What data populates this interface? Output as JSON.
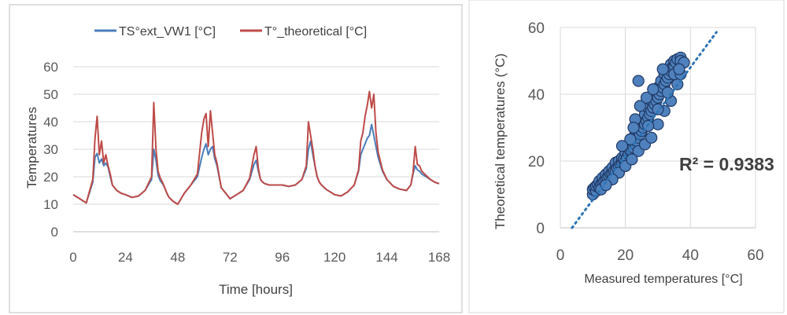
{
  "chart_data": [
    {
      "type": "line",
      "title": "",
      "xlabel": "Time [hours]",
      "ylabel": "Temperatures",
      "xlim": [
        0,
        168
      ],
      "ylim": [
        0,
        60
      ],
      "xticks": [
        "0",
        "24",
        "48",
        "72",
        "96",
        "120",
        "144",
        "168"
      ],
      "yticks": [
        "0",
        "10",
        "20",
        "30",
        "40",
        "50",
        "60"
      ],
      "grid": "horizontal",
      "legend": "top",
      "x": [
        0,
        3,
        6,
        9,
        10,
        11,
        12,
        13,
        14,
        15,
        16,
        17,
        18,
        20,
        22,
        24,
        27,
        30,
        33,
        36,
        37,
        38,
        39,
        40,
        41,
        42,
        43,
        44,
        46,
        48,
        51,
        54,
        57,
        59,
        60,
        61,
        62,
        63,
        64,
        65,
        66,
        67,
        68,
        70,
        72,
        75,
        78,
        81,
        83,
        84,
        85,
        86,
        87,
        88,
        90,
        93,
        96,
        99,
        102,
        105,
        107,
        108,
        109,
        110,
        111,
        112,
        113,
        114,
        116,
        120,
        123,
        126,
        129,
        131,
        132,
        133,
        134,
        135,
        136,
        137,
        138,
        139,
        140,
        142,
        144,
        147,
        150,
        153,
        155,
        156,
        157,
        158,
        159,
        160,
        162,
        164,
        166,
        168
      ],
      "series": [
        {
          "name": "TS°ext_VW1 [°C]",
          "color": "#4a7ebb",
          "values": [
            13.5,
            12.0,
            10.5,
            18.0,
            27.0,
            28.5,
            25.0,
            26.5,
            24.0,
            25.0,
            23.5,
            20.0,
            17.0,
            15.0,
            14.0,
            13.5,
            12.5,
            13.0,
            15.0,
            19.0,
            30.0,
            26.0,
            20.5,
            18.5,
            17.5,
            16.0,
            14.0,
            12.5,
            11.0,
            10.0,
            14.0,
            17.0,
            20.0,
            27.0,
            30.0,
            32.0,
            28.0,
            30.0,
            31.0,
            26.5,
            24.0,
            20.0,
            16.0,
            14.0,
            12.0,
            13.5,
            15.0,
            19.0,
            24.5,
            26.0,
            22.0,
            19.0,
            18.0,
            17.5,
            17.0,
            17.0,
            17.0,
            16.5,
            17.0,
            19.0,
            23.0,
            30.0,
            33.0,
            28.0,
            24.0,
            20.0,
            18.0,
            17.0,
            15.5,
            13.5,
            13.0,
            14.5,
            17.0,
            22.0,
            28.0,
            30.0,
            32.0,
            34.0,
            35.0,
            39.0,
            35.0,
            31.0,
            27.0,
            22.0,
            19.0,
            16.5,
            15.5,
            15.0,
            17.0,
            21.0,
            24.0,
            22.5,
            22.0,
            21.0,
            20.0,
            19.0,
            18.0,
            17.5
          ]
        },
        {
          "name": "T°_theoretical [°C]",
          "color": "#be4b48",
          "values": [
            13.5,
            12.0,
            10.5,
            19.0,
            34.0,
            42.0,
            28.0,
            33.0,
            25.0,
            28.0,
            24.0,
            21.0,
            17.0,
            15.0,
            14.0,
            13.5,
            12.5,
            13.0,
            15.0,
            20.0,
            47.0,
            30.0,
            22.0,
            19.5,
            18.0,
            16.0,
            14.0,
            12.5,
            11.0,
            10.0,
            14.0,
            17.0,
            21.0,
            36.0,
            41.0,
            43.0,
            31.0,
            44.0,
            36.0,
            28.0,
            25.0,
            20.5,
            16.0,
            14.0,
            12.0,
            13.5,
            15.0,
            19.5,
            28.0,
            31.0,
            23.0,
            19.0,
            18.0,
            17.5,
            17.0,
            17.0,
            17.0,
            16.5,
            17.0,
            19.0,
            24.0,
            40.0,
            35.0,
            30.0,
            24.0,
            20.0,
            18.0,
            17.0,
            15.5,
            13.5,
            13.0,
            14.5,
            17.0,
            22.5,
            33.0,
            36.0,
            42.0,
            46.0,
            51.0,
            45.0,
            50.0,
            36.0,
            29.0,
            22.5,
            19.0,
            16.5,
            15.5,
            15.0,
            17.0,
            21.5,
            31.0,
            24.5,
            24.0,
            22.0,
            20.5,
            19.0,
            18.0,
            17.5
          ]
        }
      ]
    },
    {
      "type": "scatter",
      "title": "",
      "xlabel": "Measured temperatures [°C]",
      "ylabel": "Theoretical temperatures  (°C)",
      "xlim": [
        0,
        60
      ],
      "ylim": [
        0,
        60
      ],
      "xticks": [
        "0",
        "20",
        "40",
        "60"
      ],
      "yticks": [
        "0",
        "20",
        "40",
        "60"
      ],
      "grid": "both",
      "marker_color": "#4f81bd",
      "marker_edge": "#1f3864",
      "trendline": {
        "x": [
          3.6,
          48.0
        ],
        "y": [
          0,
          58.6
        ],
        "color": "#2e75b6"
      },
      "annotation": "R² = 0.9383",
      "points": [
        [
          10,
          10
        ],
        [
          10,
          11.5
        ],
        [
          10.5,
          12
        ],
        [
          11,
          11
        ],
        [
          11,
          12.5
        ],
        [
          11.5,
          13
        ],
        [
          12,
          12
        ],
        [
          12,
          14
        ],
        [
          12.5,
          13
        ],
        [
          13,
          13.5
        ],
        [
          13,
          15
        ],
        [
          13.5,
          14
        ],
        [
          14,
          14.5
        ],
        [
          14,
          16
        ],
        [
          14.5,
          15
        ],
        [
          15,
          15.5
        ],
        [
          15,
          17
        ],
        [
          15.5,
          16
        ],
        [
          16,
          16
        ],
        [
          16,
          18
        ],
        [
          16.5,
          17
        ],
        [
          17,
          17
        ],
        [
          17,
          19.5
        ],
        [
          17.5,
          18
        ],
        [
          18,
          18.5
        ],
        [
          18,
          20
        ],
        [
          18.5,
          19
        ],
        [
          19,
          19.5
        ],
        [
          19,
          21
        ],
        [
          19.5,
          20.5
        ],
        [
          20,
          20
        ],
        [
          20,
          22.5
        ],
        [
          20.5,
          21
        ],
        [
          21,
          22
        ],
        [
          21,
          24.5
        ],
        [
          21.5,
          23
        ],
        [
          22,
          23
        ],
        [
          22,
          26
        ],
        [
          22.5,
          24
        ],
        [
          23,
          25
        ],
        [
          23,
          28
        ],
        [
          23.5,
          26
        ],
        [
          24,
          27
        ],
        [
          24,
          30
        ],
        [
          24.5,
          28
        ],
        [
          25,
          29
        ],
        [
          25,
          32
        ],
        [
          25.5,
          30
        ],
        [
          26,
          31
        ],
        [
          26,
          34
        ],
        [
          26.5,
          32
        ],
        [
          27,
          33
        ],
        [
          27,
          36
        ],
        [
          27.5,
          34
        ],
        [
          28,
          35
        ],
        [
          28,
          38
        ],
        [
          28.5,
          36
        ],
        [
          29,
          37
        ],
        [
          29,
          40
        ],
        [
          29.5,
          38
        ],
        [
          30,
          39
        ],
        [
          30,
          42
        ],
        [
          30.5,
          40
        ],
        [
          31,
          41
        ],
        [
          31,
          44
        ],
        [
          31.5,
          42
        ],
        [
          32,
          43
        ],
        [
          32,
          46
        ],
        [
          32.5,
          44
        ],
        [
          33,
          45
        ],
        [
          33,
          47
        ],
        [
          33.5,
          46
        ],
        [
          34,
          47
        ],
        [
          34,
          49
        ],
        [
          34.5,
          48
        ],
        [
          35,
          48.5
        ],
        [
          35,
          50
        ],
        [
          35.5,
          49.5
        ],
        [
          36,
          50.5
        ],
        [
          37,
          51
        ],
        [
          37,
          50
        ],
        [
          38,
          49.5
        ],
        [
          24,
          23
        ],
        [
          26,
          25
        ],
        [
          28,
          27
        ],
        [
          30,
          31
        ],
        [
          32,
          35
        ],
        [
          34,
          38
        ],
        [
          36,
          43
        ],
        [
          35,
          46
        ],
        [
          18,
          16.5
        ],
        [
          20,
          18.5
        ],
        [
          22,
          20.5
        ],
        [
          16,
          14.5
        ],
        [
          21.5,
          26.5
        ],
        [
          19,
          24.5
        ],
        [
          23,
          32.5
        ],
        [
          22.5,
          30
        ],
        [
          24.5,
          36.5
        ],
        [
          26.5,
          39
        ],
        [
          28.5,
          41.5
        ],
        [
          24,
          44
        ],
        [
          31.5,
          47.5
        ],
        [
          12.5,
          11.5
        ],
        [
          14,
          12.8
        ],
        [
          30,
          35.5
        ],
        [
          27,
          30.5
        ],
        [
          33,
          40.5
        ],
        [
          37,
          46
        ],
        [
          36.5,
          47.5
        ]
      ]
    }
  ]
}
